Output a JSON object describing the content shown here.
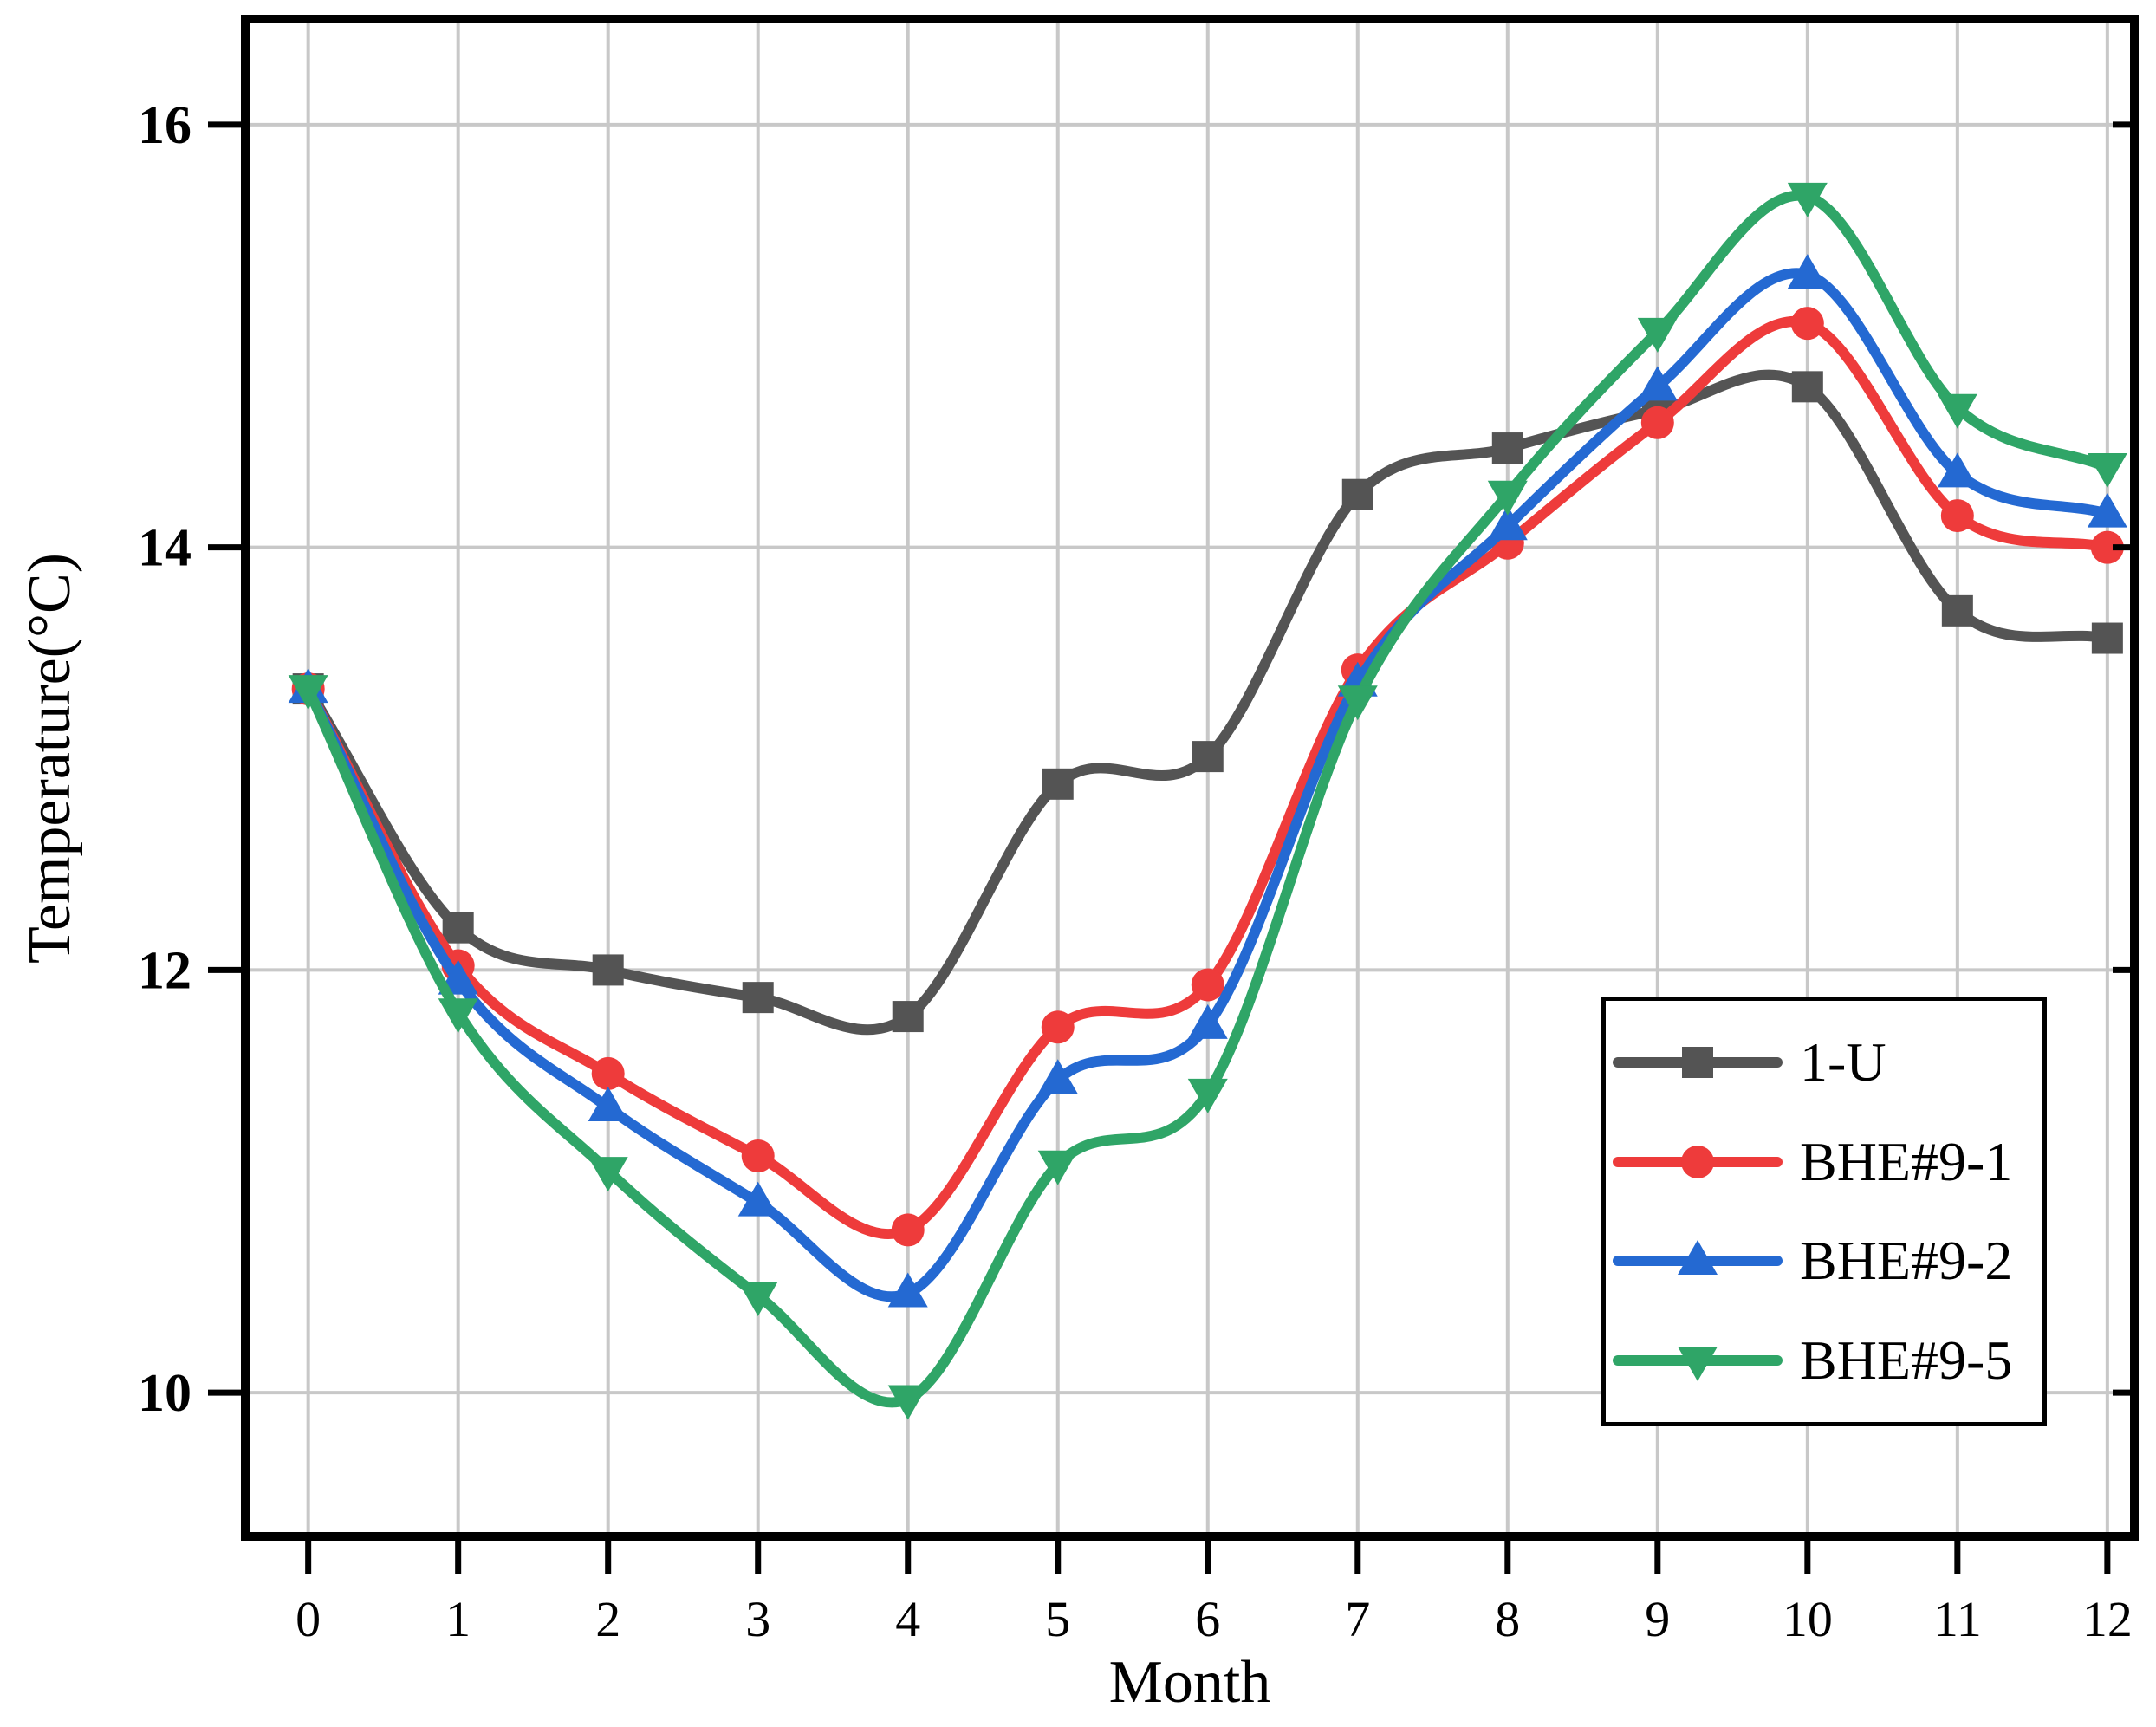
{
  "figure": {
    "background": "#ffffff",
    "frame_color": "#000000",
    "grid_color": "#c8c8c8",
    "tick_color": "#000000"
  },
  "chart_data": {
    "type": "line",
    "title": "",
    "xlabel": "Month",
    "ylabel": "Temperature(°C)",
    "grid": true,
    "legend_position": "inside lower right",
    "xlim": [
      -0.42,
      12.18
    ],
    "ylim": [
      9.32,
      16.5
    ],
    "x_ticks": [
      0,
      1,
      2,
      3,
      4,
      5,
      6,
      7,
      8,
      9,
      10,
      11,
      12
    ],
    "y_ticks": [
      10,
      12,
      14,
      16
    ],
    "x": [
      0,
      1,
      2,
      3,
      4,
      5,
      6,
      7,
      8,
      9,
      10,
      11,
      12
    ],
    "series": [
      {
        "name": "1-U",
        "color": "#545454",
        "marker": "square",
        "values": [
          13.33,
          12.2,
          12.0,
          11.87,
          11.78,
          12.88,
          13.01,
          14.25,
          14.47,
          14.65,
          14.76,
          13.7,
          13.57
        ]
      },
      {
        "name": "BHE#9-1",
        "color": "#ee3b3b",
        "marker": "circle",
        "values": [
          13.33,
          12.02,
          11.51,
          11.12,
          10.77,
          11.73,
          11.93,
          13.42,
          14.02,
          14.59,
          15.06,
          14.15,
          14.0
        ]
      },
      {
        "name": "BHE#9-2",
        "color": "#2469d2",
        "marker": "triangle-up",
        "values": [
          13.33,
          11.95,
          11.35,
          10.9,
          10.47,
          11.48,
          11.74,
          13.36,
          14.1,
          14.76,
          15.29,
          14.35,
          14.16
        ]
      },
      {
        "name": "BHE#9-5",
        "color": "#2fa567",
        "marker": "triangle-down",
        "values": [
          13.33,
          11.8,
          11.05,
          10.46,
          9.97,
          11.08,
          11.42,
          13.28,
          14.25,
          15.02,
          15.66,
          14.66,
          14.38
        ]
      }
    ]
  }
}
